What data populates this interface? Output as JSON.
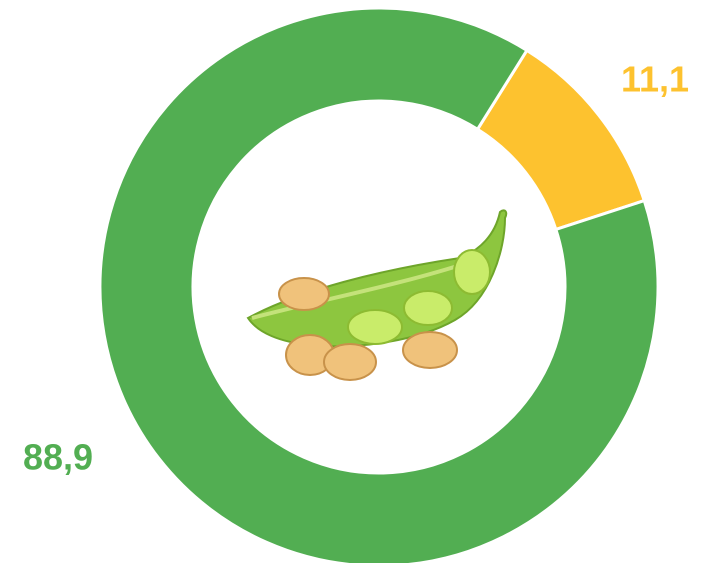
{
  "chart_data": {
    "type": "donut",
    "values": [
      11.1,
      88.9
    ],
    "value_labels": [
      "11,1",
      "88,9"
    ],
    "colors": [
      "#fdc22f",
      "#52ae52"
    ]
  }
}
